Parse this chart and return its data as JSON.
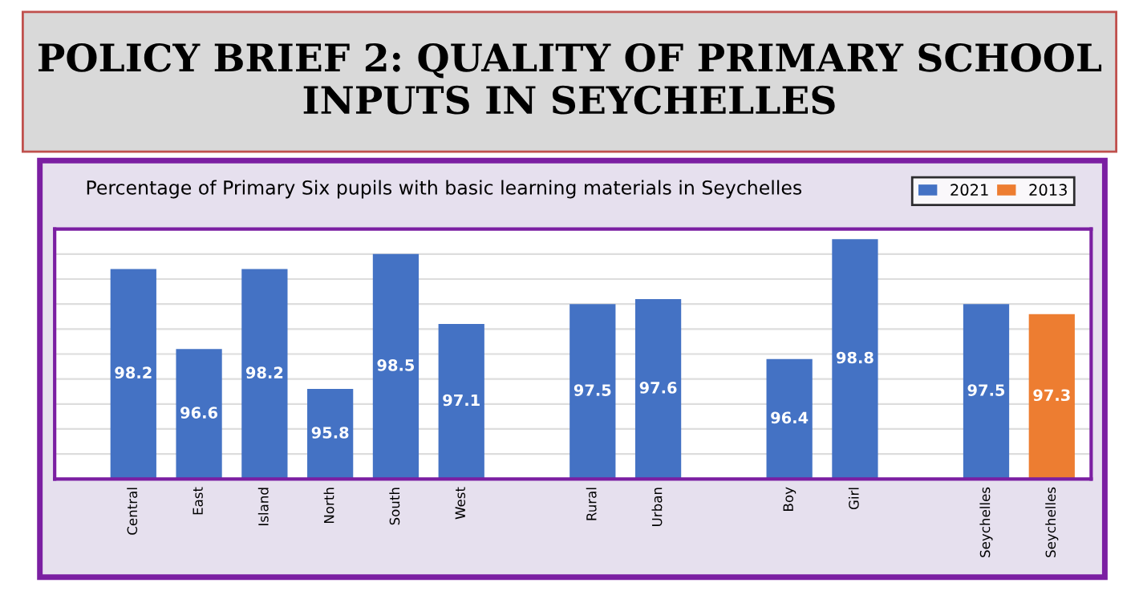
{
  "chart_data": {
    "type": "bar",
    "title": "POLICY BRIEF 2: QUALITY OF PRIMARY SCHOOL INPUTS IN SEYCHELLES",
    "subtitle": "Percentage of Primary Six pupils with basic learning materials in Seychelles",
    "categories": [
      "Central",
      "East",
      "Island",
      "North",
      "South",
      "West",
      null,
      "Rural",
      "Urban",
      null,
      "Boy",
      "Girl",
      null,
      "Seychelles",
      "Seychelles"
    ],
    "series": [
      {
        "name": "2021",
        "color": "#4472c4",
        "values": [
          98.2,
          96.6,
          98.2,
          95.8,
          98.5,
          97.1,
          null,
          97.5,
          97.6,
          null,
          96.4,
          98.8,
          null,
          97.5,
          null
        ]
      },
      {
        "name": "2013",
        "color": "#ed7d31",
        "values": [
          null,
          null,
          null,
          null,
          null,
          null,
          null,
          null,
          null,
          null,
          null,
          null,
          null,
          null,
          97.3
        ]
      }
    ],
    "ylim": [
      94.0,
      99.0
    ],
    "yticks": [
      {
        "value": 94.5,
        "label": null
      },
      {
        "value": 95.0,
        "label": null
      },
      {
        "value": 95.5,
        "label": null
      },
      {
        "value": 96.0,
        "label": null
      },
      {
        "value": 96.5,
        "label": null
      },
      {
        "value": 97.0,
        "label": null
      },
      {
        "value": 97.5,
        "label": null
      },
      {
        "value": 98.0,
        "label": null
      },
      {
        "value": 98.5,
        "label": null
      }
    ],
    "tick_labels": "x",
    "grid": "y",
    "legend": "top right",
    "data_labels": true
  }
}
